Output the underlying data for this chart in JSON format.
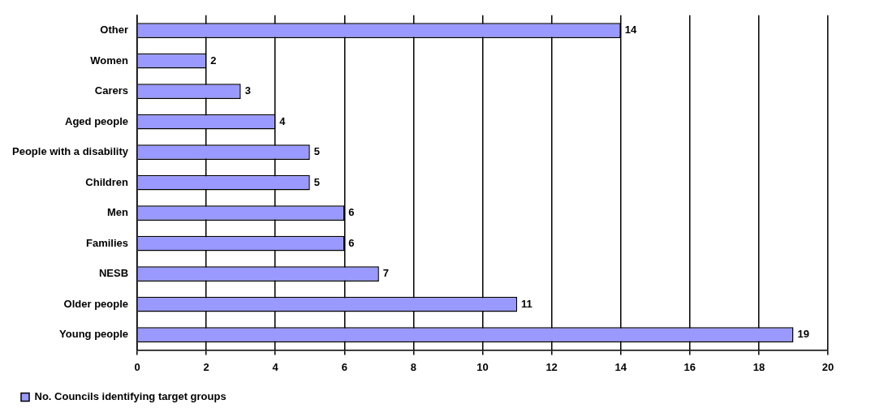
{
  "chart_data": {
    "type": "bar",
    "orientation": "horizontal",
    "categories": [
      "Other",
      "Women",
      "Carers",
      "Aged people",
      "People with a disability",
      "Children",
      "Men",
      "Families",
      "NESB",
      "Older people",
      "Young people"
    ],
    "series": [
      {
        "name": "No. Councils identifying target groups",
        "color": "#9999ff",
        "values": [
          14,
          2,
          3,
          4,
          5,
          5,
          6,
          6,
          7,
          11,
          19
        ]
      }
    ],
    "xlim": [
      0,
      20
    ],
    "xticks": [
      0,
      2,
      4,
      6,
      8,
      10,
      12,
      14,
      16,
      18,
      20
    ],
    "grid": "x",
    "legend": "bottom",
    "data_labels": true
  }
}
